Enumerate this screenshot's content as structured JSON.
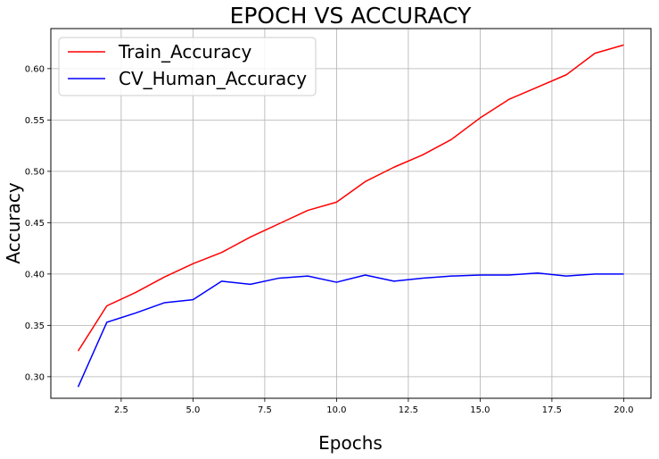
{
  "chart_data": {
    "type": "line",
    "title": "EPOCH VS ACCURACY",
    "xlabel": "Epochs",
    "ylabel": "Accuracy",
    "xlim": [
      0.05,
      20.95
    ],
    "ylim": [
      0.279,
      0.639
    ],
    "xticks": [
      2.5,
      5.0,
      7.5,
      10.0,
      12.5,
      15.0,
      17.5,
      20.0
    ],
    "yticks": [
      0.3,
      0.35,
      0.4,
      0.45,
      0.5,
      0.55,
      0.6
    ],
    "grid": true,
    "legend_position": "top-left",
    "x": [
      1,
      2,
      3,
      4,
      5,
      6,
      7,
      8,
      9,
      10,
      11,
      12,
      13,
      14,
      15,
      16,
      17,
      18,
      19,
      20
    ],
    "series": [
      {
        "name": "Train_Accuracy",
        "color": "#ff0000",
        "values": [
          0.325,
          0.369,
          0.382,
          0.397,
          0.41,
          0.421,
          0.436,
          0.449,
          0.462,
          0.47,
          0.49,
          0.504,
          0.516,
          0.531,
          0.552,
          0.57,
          0.582,
          0.594,
          0.615,
          0.623
        ]
      },
      {
        "name": "CV_Human_Accuracy",
        "color": "#0000ff",
        "values": [
          0.29,
          0.353,
          0.362,
          0.372,
          0.375,
          0.393,
          0.39,
          0.396,
          0.398,
          0.392,
          0.399,
          0.393,
          0.396,
          0.398,
          0.399,
          0.399,
          0.401,
          0.398,
          0.4,
          0.4
        ]
      }
    ]
  }
}
